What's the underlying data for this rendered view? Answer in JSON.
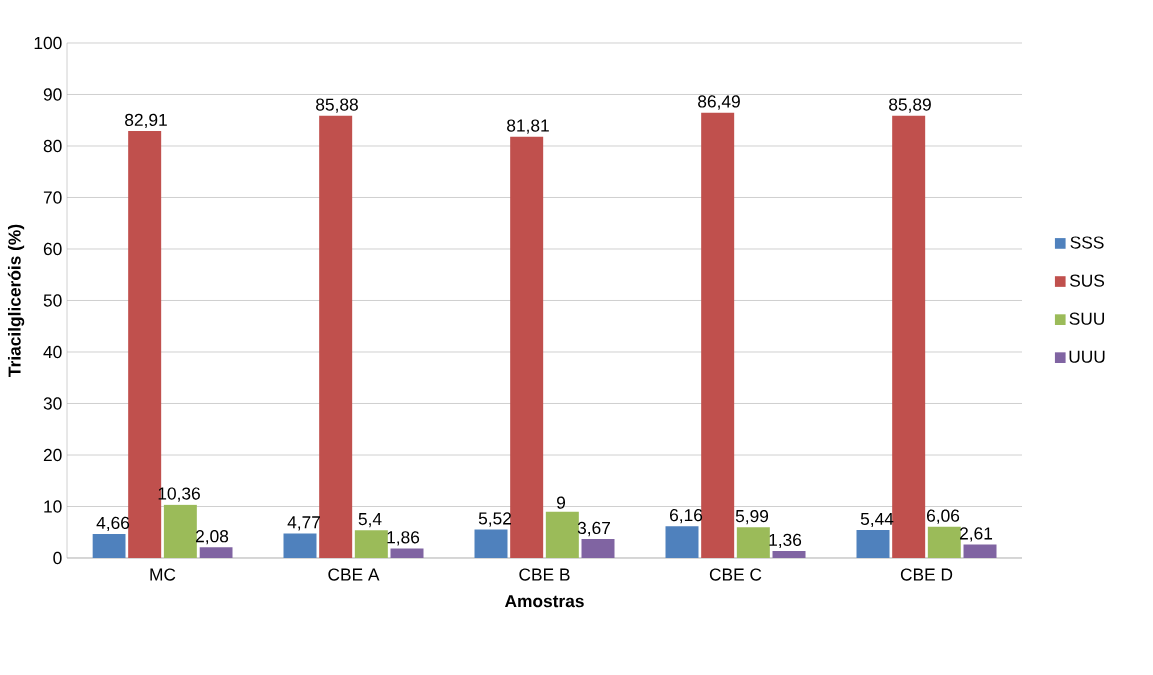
{
  "chart_data": {
    "type": "bar",
    "xlabel": "Amostras",
    "ylabel": "Triacilgliceróis (%)",
    "categories": [
      "MC",
      "CBE A",
      "CBE B",
      "CBE C",
      "CBE D"
    ],
    "series": [
      {
        "name": "SSS",
        "color": "#4f81bd",
        "values": [
          4.66,
          4.77,
          5.52,
          6.16,
          5.44
        ],
        "value_labels": [
          "4,66",
          "4,77",
          "5,52",
          "6,16",
          "5,44"
        ]
      },
      {
        "name": "SUS",
        "color": "#c0504d",
        "values": [
          82.91,
          85.88,
          81.81,
          86.49,
          85.89
        ],
        "value_labels": [
          "82,91",
          "85,88",
          "81,81",
          "86,49",
          "85,89"
        ]
      },
      {
        "name": "SUU",
        "color": "#9bbb59",
        "values": [
          10.36,
          5.4,
          9,
          5.99,
          6.06
        ],
        "value_labels": [
          "10,36",
          "5,4",
          "9",
          "5,99",
          "6,06"
        ]
      },
      {
        "name": "UUU",
        "color": "#8064a2",
        "values": [
          2.08,
          1.86,
          3.67,
          1.36,
          2.61
        ],
        "value_labels": [
          "2,08",
          "1,86",
          "3,67",
          "1,36",
          "2,61"
        ]
      }
    ],
    "ylim": [
      0,
      100
    ],
    "yticks": [
      0,
      10,
      20,
      30,
      40,
      50,
      60,
      70,
      80,
      90,
      100
    ],
    "grid": "y",
    "legend": "right"
  }
}
